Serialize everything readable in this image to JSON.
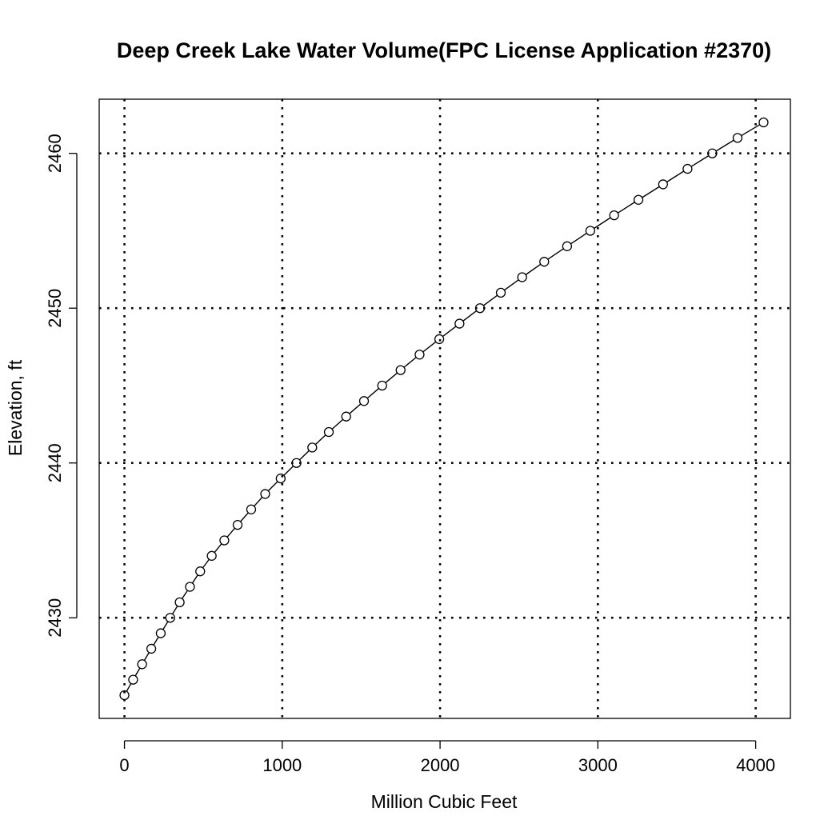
{
  "chart_data": {
    "type": "line",
    "title": "Deep Creek Lake Water Volume(FPC License Application #2370)",
    "xlabel": "Million Cubic Feet",
    "ylabel": "Elevation, ft",
    "xlim": [
      -160,
      4220
    ],
    "ylim": [
      2423.5,
      2463.5
    ],
    "xticks": [
      0,
      1000,
      2000,
      3000,
      4000
    ],
    "yticks": [
      2430,
      2440,
      2450,
      2460
    ],
    "grid": true,
    "markers": "open-circle",
    "series": [
      {
        "x": [
          0,
          55,
          112,
          170,
          230,
          290,
          350,
          415,
          480,
          553,
          633,
          717,
          803,
          892,
          990,
          1090,
          1190,
          1295,
          1405,
          1518,
          1633,
          1750,
          1870,
          1995,
          2123,
          2253,
          2385,
          2520,
          2660,
          2805,
          2952,
          3103,
          3257,
          3413,
          3568,
          3725,
          3885,
          4050
        ],
        "y": [
          2425,
          2426,
          2427,
          2428,
          2429,
          2430,
          2431,
          2432,
          2433,
          2434,
          2435,
          2436,
          2437,
          2438,
          2439,
          2440,
          2441,
          2442,
          2443,
          2444,
          2445,
          2446,
          2447,
          2448,
          2449,
          2450,
          2451,
          2452,
          2453,
          2454,
          2455,
          2456,
          2457,
          2458,
          2459,
          2460,
          2461,
          2462
        ]
      }
    ]
  }
}
